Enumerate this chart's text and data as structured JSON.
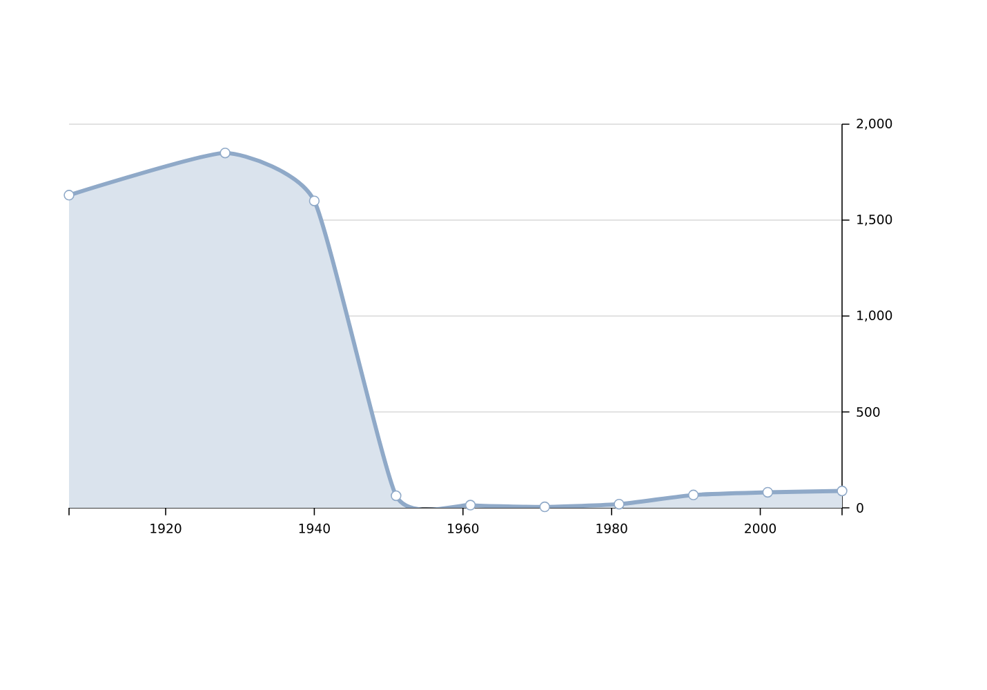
{
  "chart_data": {
    "type": "area",
    "x": [
      1907,
      1928,
      1940,
      1951,
      1961,
      1971,
      1981,
      1991,
      2001,
      2011
    ],
    "series": [
      {
        "color": "#8fa9c8",
        "values": [
          1630,
          1850,
          1600,
          63,
          14,
          5,
          19,
          67,
          81,
          88
        ]
      }
    ],
    "xlim": [
      1907,
      2011
    ],
    "xticks": [
      1920,
      1940,
      1960,
      1980,
      2000
    ],
    "ylim": [
      0,
      2000
    ],
    "yticks": [
      0,
      500,
      {
        "value": 1000,
        "label": "1,000"
      },
      {
        "value": 1500,
        "label": "1,500"
      },
      {
        "value": 2000,
        "label": "2,000"
      }
    ],
    "grid": "y",
    "marker": "circle"
  }
}
